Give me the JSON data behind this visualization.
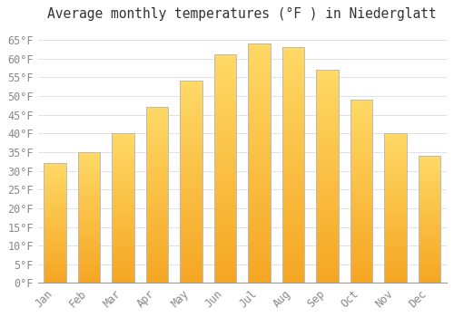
{
  "title": "Average monthly temperatures (°F ) in Niederglatt",
  "months": [
    "Jan",
    "Feb",
    "Mar",
    "Apr",
    "May",
    "Jun",
    "Jul",
    "Aug",
    "Sep",
    "Oct",
    "Nov",
    "Dec"
  ],
  "values": [
    32,
    35,
    40,
    47,
    54,
    61,
    64,
    63,
    57,
    49,
    40,
    34
  ],
  "bar_color_bottom": "#F5A623",
  "bar_color_top": "#FFD966",
  "bar_edge_color": "#BBBBBB",
  "background_color": "#FFFFFF",
  "plot_bg_color": "#FFFFFF",
  "grid_color": "#DDDDDD",
  "ylim": [
    0,
    68
  ],
  "yticks": [
    0,
    5,
    10,
    15,
    20,
    25,
    30,
    35,
    40,
    45,
    50,
    55,
    60,
    65
  ],
  "title_fontsize": 10.5,
  "tick_fontsize": 8.5,
  "tick_font_color": "#888888",
  "title_color": "#333333"
}
